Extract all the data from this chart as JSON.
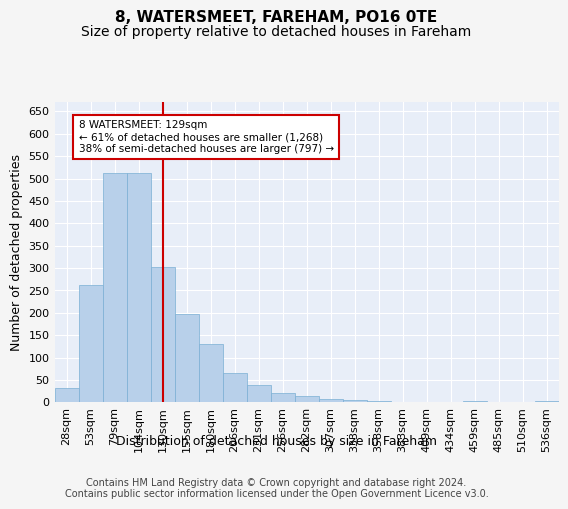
{
  "title": "8, WATERSMEET, FAREHAM, PO16 0TE",
  "subtitle": "Size of property relative to detached houses in Fareham",
  "xlabel": "Distribution of detached houses by size in Fareham",
  "ylabel": "Number of detached properties",
  "categories": [
    "28sqm",
    "53sqm",
    "79sqm",
    "104sqm",
    "130sqm",
    "155sqm",
    "180sqm",
    "206sqm",
    "231sqm",
    "256sqm",
    "282sqm",
    "307sqm",
    "333sqm",
    "358sqm",
    "383sqm",
    "409sqm",
    "434sqm",
    "459sqm",
    "485sqm",
    "510sqm",
    "536sqm"
  ],
  "values": [
    32,
    263,
    512,
    512,
    302,
    197,
    130,
    65,
    38,
    22,
    14,
    8,
    5,
    4,
    2,
    1,
    0,
    4,
    1,
    0,
    4
  ],
  "bar_color": "#b8d0ea",
  "bar_edge_color": "#7aafd4",
  "annotation_text": "8 WATERSMEET: 129sqm\n← 61% of detached houses are smaller (1,268)\n38% of semi-detached houses are larger (797) →",
  "annotation_box_color": "#ffffff",
  "annotation_box_edge": "#cc0000",
  "vline_color": "#cc0000",
  "footer_text": "Contains HM Land Registry data © Crown copyright and database right 2024.\nContains public sector information licensed under the Open Government Licence v3.0.",
  "ylim": [
    0,
    670
  ],
  "yticks": [
    0,
    50,
    100,
    150,
    200,
    250,
    300,
    350,
    400,
    450,
    500,
    550,
    600,
    650
  ],
  "bg_color": "#e8eef8",
  "grid_color": "#ffffff",
  "title_fontsize": 11,
  "subtitle_fontsize": 10,
  "tick_fontsize": 8,
  "label_fontsize": 9,
  "footer_fontsize": 7
}
